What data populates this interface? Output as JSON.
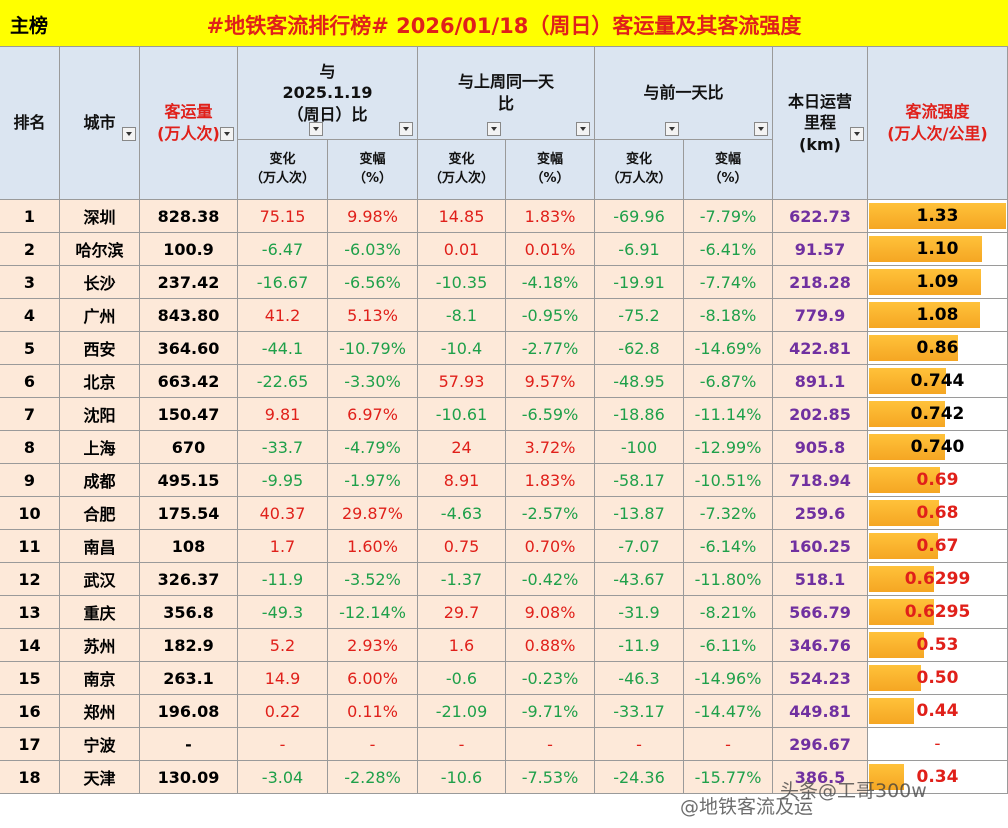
{
  "header": {
    "badge": "主榜",
    "title": "#地铁客流排行榜# 2026/01/18（周日）客运量及其客流强度"
  },
  "columns": {
    "rank": "排名",
    "city": "城市",
    "passengers": "客运量\n(万人次)",
    "groups": [
      "与2025.1.19（周日）比",
      "与上周同一天比",
      "与前一天比"
    ],
    "change": "变化\n（万人次）",
    "pct": "变幅\n（%）",
    "mileage": "本日运营\n里程\n(km)",
    "intensity": "客流强度\n(万人次/公里)"
  },
  "table": {
    "rows": [
      [
        "1",
        "深圳",
        "828.38",
        "75.15",
        "9.98%",
        "14.85",
        "1.83%",
        "-69.96",
        "-7.79%",
        "622.73",
        "1.33"
      ],
      [
        "2",
        "哈尔滨",
        "100.9",
        "-6.47",
        "-6.03%",
        "0.01",
        "0.01%",
        "-6.91",
        "-6.41%",
        "91.57",
        "1.10"
      ],
      [
        "3",
        "长沙",
        "237.42",
        "-16.67",
        "-6.56%",
        "-10.35",
        "-4.18%",
        "-19.91",
        "-7.74%",
        "218.28",
        "1.09"
      ],
      [
        "4",
        "广州",
        "843.80",
        "41.2",
        "5.13%",
        "-8.1",
        "-0.95%",
        "-75.2",
        "-8.18%",
        "779.9",
        "1.08"
      ],
      [
        "5",
        "西安",
        "364.60",
        "-44.1",
        "-10.79%",
        "-10.4",
        "-2.77%",
        "-62.8",
        "-14.69%",
        "422.81",
        "0.86"
      ],
      [
        "6",
        "北京",
        "663.42",
        "-22.65",
        "-3.30%",
        "57.93",
        "9.57%",
        "-48.95",
        "-6.87%",
        "891.1",
        "0.744"
      ],
      [
        "7",
        "沈阳",
        "150.47",
        "9.81",
        "6.97%",
        "-10.61",
        "-6.59%",
        "-18.86",
        "-11.14%",
        "202.85",
        "0.742"
      ],
      [
        "8",
        "上海",
        "670",
        "-33.7",
        "-4.79%",
        "24",
        "3.72%",
        "-100",
        "-12.99%",
        "905.8",
        "0.740"
      ],
      [
        "9",
        "成都",
        "495.15",
        "-9.95",
        "-1.97%",
        "8.91",
        "1.83%",
        "-58.17",
        "-10.51%",
        "718.94",
        "0.69"
      ],
      [
        "10",
        "合肥",
        "175.54",
        "40.37",
        "29.87%",
        "-4.63",
        "-2.57%",
        "-13.87",
        "-7.32%",
        "259.6",
        "0.68"
      ],
      [
        "11",
        "南昌",
        "108",
        "1.7",
        "1.60%",
        "0.75",
        "0.70%",
        "-7.07",
        "-6.14%",
        "160.25",
        "0.67"
      ],
      [
        "12",
        "武汉",
        "326.37",
        "-11.9",
        "-3.52%",
        "-1.37",
        "-0.42%",
        "-43.67",
        "-11.80%",
        "518.1",
        "0.6299"
      ],
      [
        "13",
        "重庆",
        "356.8",
        "-49.3",
        "-12.14%",
        "29.7",
        "9.08%",
        "-31.9",
        "-8.21%",
        "566.79",
        "0.6295"
      ],
      [
        "14",
        "苏州",
        "182.9",
        "5.2",
        "2.93%",
        "1.6",
        "0.88%",
        "-11.9",
        "-6.11%",
        "346.76",
        "0.53"
      ],
      [
        "15",
        "南京",
        "263.1",
        "14.9",
        "6.00%",
        "-0.6",
        "-0.23%",
        "-46.3",
        "-14.96%",
        "524.23",
        "0.50"
      ],
      [
        "16",
        "郑州",
        "196.08",
        "0.22",
        "0.11%",
        "-21.09",
        "-9.71%",
        "-33.17",
        "-14.47%",
        "449.81",
        "0.44"
      ],
      [
        "17",
        "宁波",
        "-",
        "-",
        "-",
        "-",
        "-",
        "-",
        "-",
        "296.67",
        "-"
      ],
      [
        "18",
        "天津",
        "130.09",
        "-3.04",
        "-2.28%",
        "-10.6",
        "-7.53%",
        "-24.36",
        "-15.77%",
        "386.5",
        "0.34"
      ]
    ]
  },
  "watermarks": [
    "@地铁客流及运",
    "头条@工哥300w"
  ]
}
